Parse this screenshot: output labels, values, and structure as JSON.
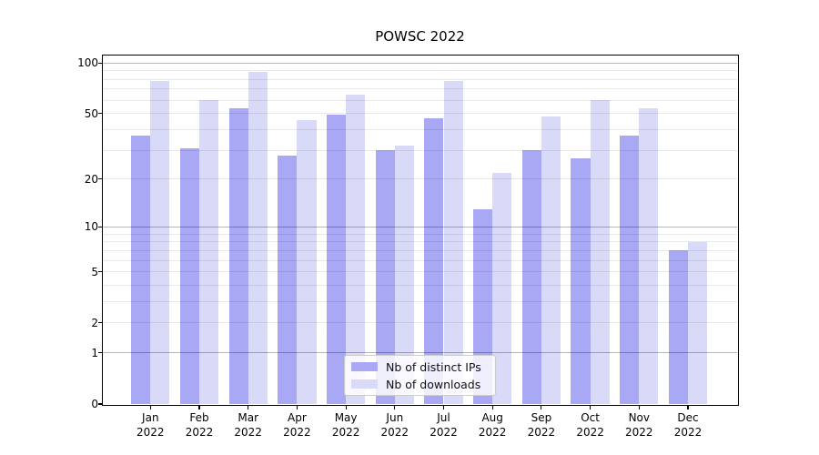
{
  "chart_data": {
    "type": "bar",
    "title": "POWSC 2022",
    "categories": [
      "Jan",
      "Feb",
      "Mar",
      "Apr",
      "May",
      "Jun",
      "Jul",
      "Aug",
      "Sep",
      "Oct",
      "Nov",
      "Dec"
    ],
    "category_year": "2022",
    "series": [
      {
        "name": "Nb of distinct IPs",
        "color": "#a8a8f5",
        "values": [
          37,
          31,
          54,
          28,
          49,
          30,
          47,
          13,
          30,
          27,
          37,
          7
        ]
      },
      {
        "name": "Nb of downloads",
        "color": "#d9d9f8",
        "values": [
          78,
          60,
          89,
          46,
          65,
          32,
          78,
          22,
          48,
          60,
          54,
          8
        ]
      }
    ],
    "xlabel": "",
    "ylabel": "",
    "yscale": "logarithmic-like (log10(1+v), zero shown at baseline)",
    "ylim": [
      0,
      111
    ],
    "y_ticks": [
      100,
      50,
      20,
      10,
      5,
      2,
      1,
      0
    ],
    "y_tick_labels": [
      "100",
      "50",
      "20",
      "10",
      "5",
      "2",
      "1",
      "0"
    ],
    "y_major_gridlines": [
      1,
      10,
      100
    ],
    "y_minor_gridlines": [
      2,
      3,
      4,
      5,
      6,
      7,
      8,
      9,
      20,
      30,
      40,
      50,
      60,
      70,
      80,
      90
    ],
    "grid": "horizontal only, drawn above bars",
    "legend": {
      "position": "lower center",
      "items": [
        "Nb of distinct IPs",
        "Nb of downloads"
      ]
    }
  }
}
